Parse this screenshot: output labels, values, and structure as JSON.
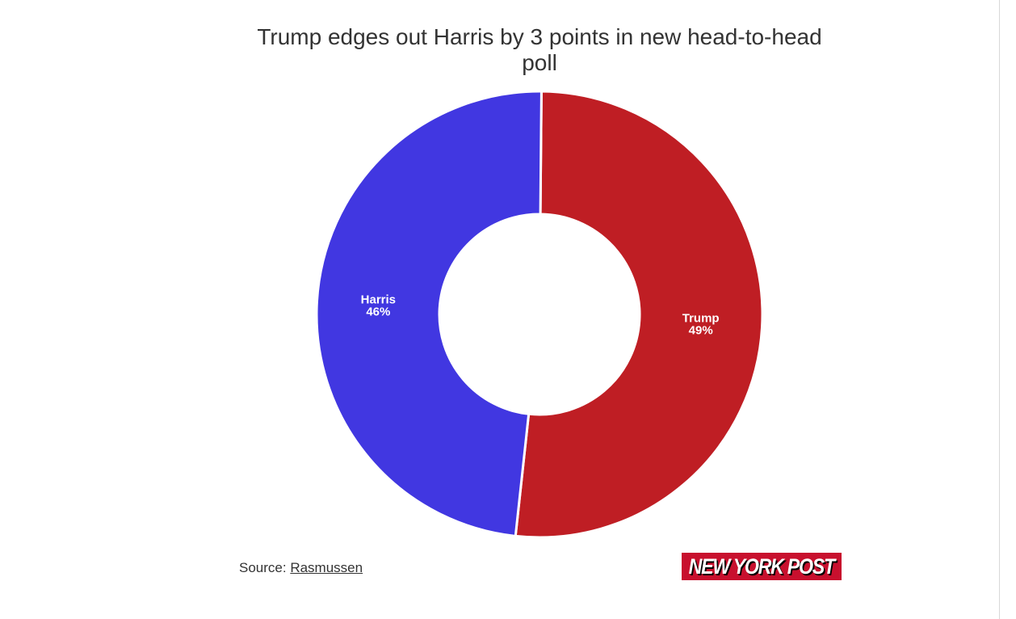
{
  "chart_data": {
    "type": "pie",
    "variant": "donut",
    "title": "Trump edges out Harris by 3 points in new head-to-head poll",
    "slices": [
      {
        "label": "Trump",
        "value": 49,
        "value_label": "49%",
        "color": "#bf1e24"
      },
      {
        "label": "Harris",
        "value": 46,
        "value_label": "46%",
        "color": "#4137e1"
      }
    ],
    "legend": "none",
    "data_labels": "inside-slices"
  },
  "footer": {
    "source_prefix": "Source:",
    "source_name": "Rasmussen",
    "logo_text": "NEW YORK POST"
  }
}
